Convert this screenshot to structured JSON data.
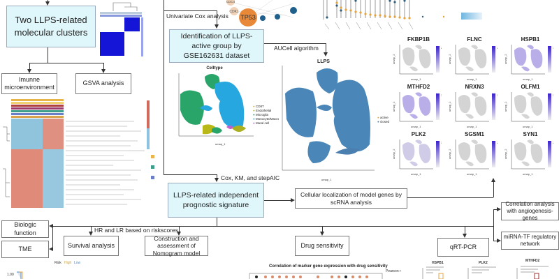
{
  "boxes": {
    "clusters": "Two LLPS-related molecular clusters",
    "immune": "Imunne microenvironment",
    "gsva": "GSVA analysis",
    "identification": "Identification of LLPS-active group by GSE162631 dataset",
    "signature": "LLPS-related independent prognostic signature",
    "cellular": "Cellular localization of model genes by scRNA analysis",
    "biologic": "Biologic function",
    "tme": "TME",
    "survival": "Survival analysis",
    "nomogram": "Construction and assessment of Nomogram model",
    "drug": "Drug sensitivity",
    "qrtpcr": "qRT-PCR",
    "correlation": "Correlation analysis with angiogenesis-genes",
    "mirna": "miRNA-TF regulatory network"
  },
  "arrow_labels": {
    "cox": "Univariate Cox analysis",
    "aucell": "AUCell algorithm",
    "stepaic": "Cox, KM, and stepAIC",
    "hrlr": "HR and LR based on riskscores"
  },
  "network": {
    "hub": "TP53",
    "nodes": [
      "CDK1",
      "CDC4"
    ]
  },
  "celltype_plot": {
    "title": "Celltype",
    "xlabel": "umap_1",
    "ylabel": "umap_2",
    "legend": [
      "CD8T",
      "Endothelial",
      "Microglia",
      "Monocyte/Macro",
      "Mural cell"
    ]
  },
  "llps_plot": {
    "title": "LLPS",
    "xlabel": "umap_1",
    "legend": [
      "active",
      "closed"
    ],
    "colors": {
      "active": "#e8a33c",
      "closed": "#4a7fb0"
    }
  },
  "feature_plots": [
    {
      "gene": "FKBP1B",
      "max": "2"
    },
    {
      "gene": "FLNC",
      "max": "2"
    },
    {
      "gene": "HSPB1",
      "max": "3"
    },
    {
      "gene": "MTHFD2",
      "max": "3"
    },
    {
      "gene": "NRXN3",
      "max": "2.5"
    },
    {
      "gene": "OLFM1",
      "max": "2"
    },
    {
      "gene": "PLK2",
      "max": "3"
    },
    {
      "gene": "SGSM1",
      "max": "2"
    },
    {
      "gene": "SYN1",
      "max": "2"
    }
  ],
  "feature_axis": {
    "xlabel": "umap_1",
    "ylabel": "umap_2"
  },
  "bottom": {
    "drug_title": "Correlation of marker gene expression with drug sensitivity",
    "pearson": "Pearson r",
    "pcr_genes": [
      "HSPB1",
      "PLK2",
      "MTHFD2"
    ],
    "risk_legend": [
      "Risk",
      "High",
      "Low"
    ],
    "km_tick": "1.00"
  },
  "colors": {
    "box_fill": "#dff6fa",
    "tp53": "#e8893a",
    "umap_blue": "#4a86b8",
    "feature_purple": "#5a3fd0"
  }
}
